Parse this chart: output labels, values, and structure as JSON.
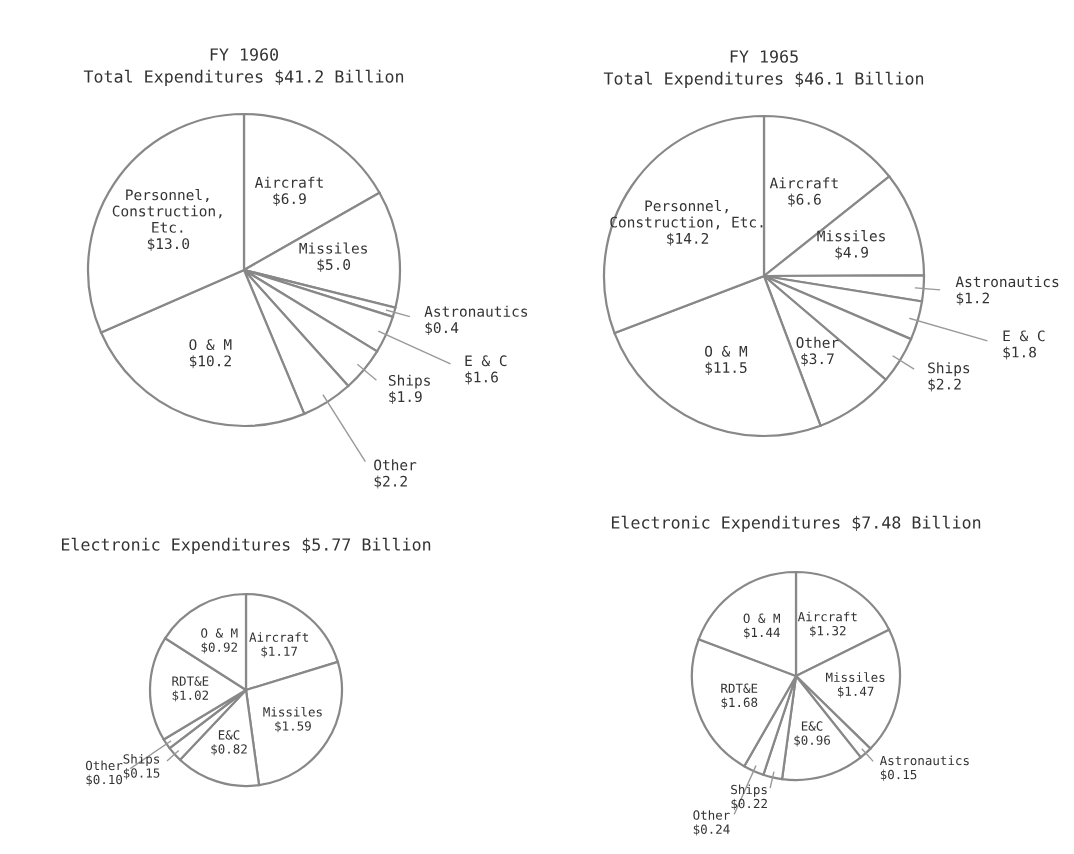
{
  "chart_data": [
    {
      "type": "pie",
      "title": "FY 1960",
      "subtitle": "Total Expenditures $41.2 Billion",
      "categories": [
        "Aircraft",
        "Missiles",
        "Astronautics",
        "E & C",
        "Ships",
        "Other",
        "O & M",
        "Personnel,\nConstruction,\nEtc."
      ],
      "values": [
        6.9,
        5.0,
        0.4,
        1.6,
        1.9,
        2.2,
        10.2,
        13.0
      ],
      "value_labels": [
        "$6.9",
        "$5.0",
        "$0.4",
        "$1.6",
        "$1.9",
        "$2.2",
        "$10.2",
        "$13.0"
      ],
      "colors": [
        "#ffffff",
        "#ffffff",
        "#ffffff",
        "#ffffff",
        "#ffffff",
        "#ffffff",
        "#ffffff",
        "#ffffff"
      ]
    },
    {
      "type": "pie",
      "title": "FY 1965",
      "subtitle": "Total Expenditures $46.1 Billion",
      "categories": [
        "Aircraft",
        "Missiles",
        "Astronautics",
        "E & C",
        "Ships",
        "Other",
        "O & M",
        "Personnel,\nConstruction, Etc."
      ],
      "values": [
        6.6,
        4.9,
        1.2,
        1.8,
        2.2,
        3.7,
        11.5,
        14.2
      ],
      "value_labels": [
        "$6.6",
        "$4.9",
        "$1.2",
        "$1.8",
        "$2.2",
        "$3.7",
        "$11.5",
        "$14.2"
      ],
      "colors": [
        "#ffffff",
        "#ffffff",
        "#ffffff",
        "#ffffff",
        "#ffffff",
        "#ffffff",
        "#ffffff",
        "#ffffff"
      ]
    },
    {
      "type": "pie",
      "title": "Electronic Expenditures $5.77 Billion",
      "categories": [
        "Aircraft",
        "Missiles",
        "E&C",
        "Ships",
        "Other",
        "RDT&E",
        "O & M"
      ],
      "values": [
        1.17,
        1.59,
        0.82,
        0.15,
        0.1,
        1.02,
        0.92
      ],
      "value_labels": [
        "$1.17",
        "$1.59",
        "$0.82",
        "$0.15",
        "$0.10",
        "$1.02",
        "$0.92"
      ],
      "colors": [
        "#ffffff",
        "#ffffff",
        "#ffffff",
        "#ffffff",
        "#ffffff",
        "#ffffff",
        "#ffffff"
      ]
    },
    {
      "type": "pie",
      "title": "Electronic Expenditures $7.48 Billion",
      "categories": [
        "Aircraft",
        "Missiles",
        "Astronautics",
        "E&C",
        "Ships",
        "Other",
        "RDT&E",
        "O & M"
      ],
      "values": [
        1.32,
        1.47,
        0.15,
        0.96,
        0.22,
        0.24,
        1.68,
        1.44
      ],
      "value_labels": [
        "$1.32",
        "$1.47",
        "$0.15",
        "$0.96",
        "$0.22",
        "$0.24",
        "$1.68",
        "$1.44"
      ],
      "colors": [
        "#ffffff",
        "#ffffff",
        "#ffffff",
        "#ffffff",
        "#ffffff",
        "#ffffff",
        "#ffffff",
        "#ffffff"
      ]
    }
  ]
}
